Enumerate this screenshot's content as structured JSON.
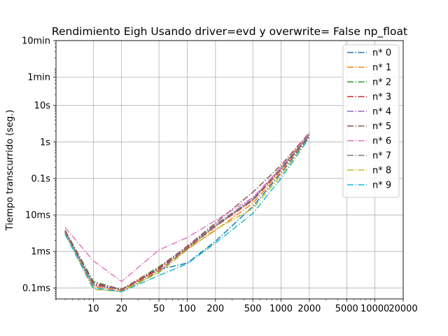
{
  "chart_data": {
    "type": "line",
    "title": "Rendimiento   Eigh Usando driver=evd y overwrite= False np_float",
    "xlabel": "",
    "ylabel": "Tiempo transcurrido (seg.)",
    "xscale": "log",
    "yscale": "log",
    "xlim": [
      4.0,
      20000
    ],
    "ylim": [
      5e-05,
      600
    ],
    "grid": true,
    "legend_position": "top-right",
    "x_ticks": [
      {
        "value": 10,
        "label": "10"
      },
      {
        "value": 20,
        "label": "20"
      },
      {
        "value": 50,
        "label": "50"
      },
      {
        "value": 100,
        "label": "100"
      },
      {
        "value": 200,
        "label": "200"
      },
      {
        "value": 500,
        "label": "500"
      },
      {
        "value": 1000,
        "label": "1000"
      },
      {
        "value": 2000,
        "label": "2000"
      },
      {
        "value": 5000,
        "label": "5000"
      },
      {
        "value": 10000,
        "label": "10000"
      },
      {
        "value": 20000,
        "label": "20000"
      }
    ],
    "y_ticks": [
      {
        "value": 0.0001,
        "label": "0.1ms"
      },
      {
        "value": 0.001,
        "label": "1ms"
      },
      {
        "value": 0.01,
        "label": "10ms"
      },
      {
        "value": 0.1,
        "label": "0.1s"
      },
      {
        "value": 1,
        "label": "1s"
      },
      {
        "value": 10,
        "label": "10s"
      },
      {
        "value": 60,
        "label": "1min"
      },
      {
        "value": 600,
        "label": "10min"
      }
    ],
    "x": [
      5,
      10,
      20,
      50,
      100,
      200,
      500,
      1000,
      2000
    ],
    "series": [
      {
        "name": "n* 0",
        "color": "#1f77b4",
        "values": [
          0.0032,
          0.00012,
          9e-05,
          0.00032,
          0.00048,
          0.0019,
          0.017,
          0.14,
          1.4
        ]
      },
      {
        "name": "n* 1",
        "color": "#ff7f0e",
        "values": [
          0.0035,
          0.00011,
          8.5e-05,
          0.0003,
          0.00115,
          0.0038,
          0.021,
          0.15,
          1.55
        ]
      },
      {
        "name": "n* 2",
        "color": "#2ca02c",
        "values": [
          0.0038,
          0.00015,
          9e-05,
          0.00038,
          0.00135,
          0.0052,
          0.027,
          0.2,
          1.6
        ]
      },
      {
        "name": "n* 3",
        "color": "#d62728",
        "values": [
          0.0036,
          0.00013,
          8.8e-05,
          0.00033,
          0.0012,
          0.0048,
          0.025,
          0.17,
          1.5
        ]
      },
      {
        "name": "n* 4",
        "color": "#9467bd",
        "values": [
          0.0034,
          0.00012,
          9e-05,
          0.00035,
          0.0013,
          0.0055,
          0.028,
          0.18,
          1.6
        ]
      },
      {
        "name": "n* 5",
        "color": "#8c564b",
        "values": [
          0.0037,
          0.00014,
          9.2e-05,
          0.00036,
          0.0014,
          0.006,
          0.042,
          0.23,
          1.8
        ]
      },
      {
        "name": "n* 6",
        "color": "#e377c2",
        "values": [
          0.0045,
          0.00055,
          0.00015,
          0.0011,
          0.0024,
          0.007,
          0.03,
          0.2,
          1.7
        ]
      },
      {
        "name": "n* 7",
        "color": "#7f7f7f",
        "values": [
          0.003,
          0.0001,
          8e-05,
          0.00028,
          0.00125,
          0.005,
          0.026,
          0.19,
          1.55
        ]
      },
      {
        "name": "n* 8",
        "color": "#bcbd22",
        "values": [
          0.0031,
          9e-05,
          8e-05,
          0.00026,
          0.0011,
          0.004,
          0.015,
          0.12,
          1.3
        ]
      },
      {
        "name": "n* 9",
        "color": "#17becf",
        "values": [
          0.0029,
          0.0001,
          7.8e-05,
          0.00022,
          0.00046,
          0.0017,
          0.011,
          0.1,
          1.3
        ]
      }
    ]
  }
}
